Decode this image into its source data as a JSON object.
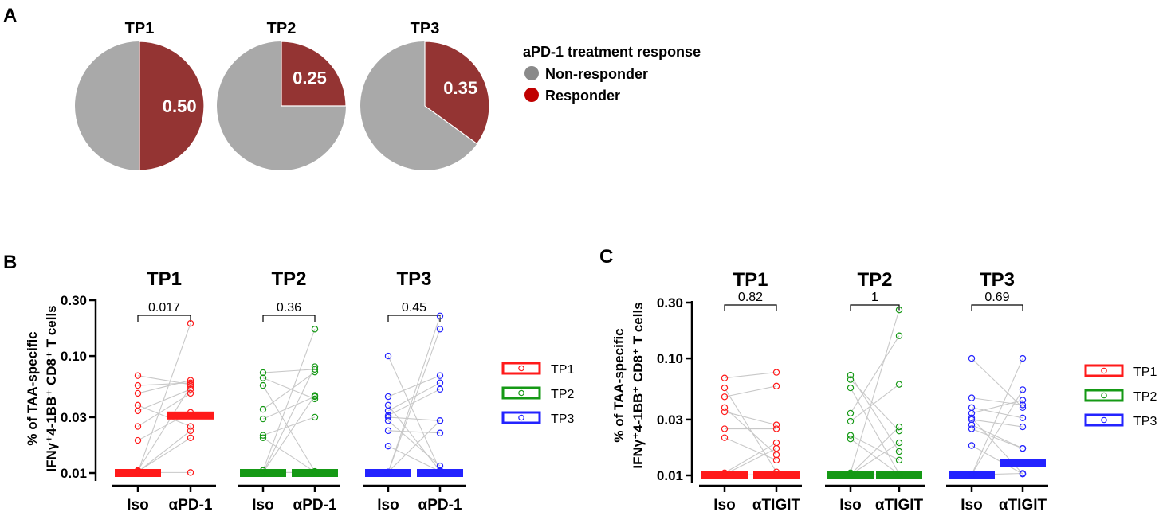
{
  "panels": {
    "a": {
      "letter": "A"
    },
    "b": {
      "letter": "B"
    },
    "c": {
      "letter": "C"
    }
  },
  "colors": {
    "nonresponder": "#a9a9a9",
    "responder": "#943433",
    "legend_nonresponder_dot": "#8a8a8a",
    "legend_nonresponder_text": "#9a9a9a",
    "legend_responder_dot": "#c00000",
    "legend_responder_text": "#c00000",
    "TP1": "#ff1a1a",
    "TP2": "#159915",
    "TP3": "#2323ff",
    "pair_line": "#c8c8c8"
  },
  "chart_data": [
    {
      "type": "pie",
      "id": "pies",
      "legend_title": "aPD-1 treatment response",
      "legend": [
        "Non-responder",
        "Responder"
      ],
      "pies": [
        {
          "title": "TP1",
          "responder": 0.5,
          "label": "0.50"
        },
        {
          "title": "TP2",
          "responder": 0.25,
          "label": "0.25"
        },
        {
          "title": "TP3",
          "responder": 0.35,
          "label": "0.35"
        }
      ]
    },
    {
      "type": "scatter",
      "id": "pd1",
      "ylabel_line1": "% of TAA-specific",
      "ylabel_line2": "IFNγ⁺4-1BB⁺ CD8⁺ T cells",
      "yscale": "log",
      "ylim": [
        0.01,
        0.3
      ],
      "yticks": [
        0.01,
        0.03,
        0.1,
        0.3
      ],
      "ytick_labels": [
        "0.01",
        "0.03",
        "0.10",
        "0.30"
      ],
      "categories": [
        "Iso",
        "αPD-1"
      ],
      "legend": [
        "TP1",
        "TP2",
        "TP3"
      ],
      "groups": [
        {
          "name": "TP1",
          "pvalue": "0.017",
          "median": [
            0.01,
            0.031
          ],
          "pairs": [
            [
              0.068,
              0.057
            ],
            [
              0.056,
              0.059
            ],
            [
              0.048,
              0.062
            ],
            [
              0.038,
              0.025
            ],
            [
              0.034,
              0.052
            ],
            [
              0.025,
              0.048
            ],
            [
              0.019,
              0.033
            ],
            [
              0.0105,
              0.055
            ],
            [
              0.0103,
              0.02
            ],
            [
              0.0102,
              0.023
            ],
            [
              0.0101,
              0.0101
            ],
            [
              0.0101,
              0.19
            ]
          ]
        },
        {
          "name": "TP2",
          "pvalue": "0.36",
          "median": [
            0.01,
            0.01
          ],
          "pairs": [
            [
              0.072,
              0.077
            ],
            [
              0.065,
              0.043
            ],
            [
              0.056,
              0.0103
            ],
            [
              0.035,
              0.073
            ],
            [
              0.029,
              0.045
            ],
            [
              0.021,
              0.03
            ],
            [
              0.02,
              0.0102
            ],
            [
              0.0105,
              0.17
            ],
            [
              0.0101,
              0.0101
            ],
            [
              0.0101,
              0.046
            ],
            [
              0.0101,
              0.081
            ],
            [
              0.0101,
              0.0101
            ]
          ]
        },
        {
          "name": "TP3",
          "pvalue": "0.45",
          "median": [
            0.01,
            0.01
          ],
          "pairs": [
            [
              0.1,
              0.0105
            ],
            [
              0.045,
              0.068
            ],
            [
              0.038,
              0.0104
            ],
            [
              0.034,
              0.059
            ],
            [
              0.031,
              0.052
            ],
            [
              0.03,
              0.028
            ],
            [
              0.028,
              0.0115
            ],
            [
              0.023,
              0.022
            ],
            [
              0.017,
              0.0103
            ],
            [
              0.0102,
              0.028
            ],
            [
              0.0101,
              0.22
            ],
            [
              0.0101,
              0.17
            ]
          ]
        }
      ]
    },
    {
      "type": "scatter",
      "id": "tigit",
      "ylabel_line1": "% of TAA-specific",
      "ylabel_line2": "IFNγ⁺4-1BB⁺ CD8⁺ T cells",
      "yscale": "log",
      "ylim": [
        0.01,
        0.3
      ],
      "yticks": [
        0.01,
        0.03,
        0.1,
        0.3
      ],
      "ytick_labels": [
        "0.01",
        "0.03",
        "0.10",
        "0.30"
      ],
      "categories": [
        "Iso",
        "αTIGIT"
      ],
      "legend": [
        "TP1",
        "TP2",
        "TP3"
      ],
      "groups": [
        {
          "name": "TP1",
          "pvalue": "0.82",
          "median": [
            0.01,
            0.01
          ],
          "pairs": [
            [
              0.068,
              0.076
            ],
            [
              0.056,
              0.0107
            ],
            [
              0.047,
              0.058
            ],
            [
              0.038,
              0.015
            ],
            [
              0.035,
              0.027
            ],
            [
              0.025,
              0.025
            ],
            [
              0.021,
              0.0135
            ],
            [
              0.0105,
              0.019
            ],
            [
              0.0102,
              0.017
            ],
            [
              0.0101,
              0.0101
            ],
            [
              0.0101,
              0.0101
            ]
          ]
        },
        {
          "name": "TP2",
          "pvalue": "1",
          "median": [
            0.01,
            0.01
          ],
          "pairs": [
            [
              0.072,
              0.016
            ],
            [
              0.066,
              0.024
            ],
            [
              0.056,
              0.0103
            ],
            [
              0.034,
              0.156
            ],
            [
              0.029,
              0.06
            ],
            [
              0.022,
              0.0135
            ],
            [
              0.0205,
              0.0102
            ],
            [
              0.0105,
              0.26
            ],
            [
              0.0102,
              0.026
            ],
            [
              0.0101,
              0.019
            ],
            [
              0.0101,
              0.0101
            ],
            [
              0.0101,
              0.0101
            ]
          ]
        },
        {
          "name": "TP3",
          "pvalue": "0.69",
          "median": [
            0.01,
            0.0128
          ],
          "pairs": [
            [
              0.1,
              0.038
            ],
            [
              0.046,
              0.04
            ],
            [
              0.038,
              0.031
            ],
            [
              0.034,
              0.044
            ],
            [
              0.031,
              0.0103
            ],
            [
              0.03,
              0.026
            ],
            [
              0.027,
              0.017
            ],
            [
              0.025,
              0.017
            ],
            [
              0.018,
              0.0103
            ],
            [
              0.0102,
              0.054
            ],
            [
              0.0101,
              0.1
            ],
            [
              0.0101,
              0.0104
            ]
          ]
        }
      ]
    }
  ]
}
